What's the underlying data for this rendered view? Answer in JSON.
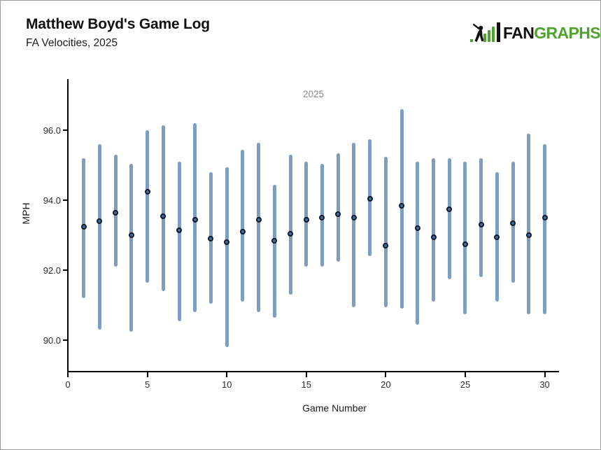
{
  "header": {
    "title": "Matthew Boyd's Game Log",
    "subtitle": "FA Velocities, 2025"
  },
  "logo": {
    "brand_black": "FAN",
    "brand_green": "GRAPHS",
    "green": "#4ea32c",
    "black": "#111111"
  },
  "chart_data": {
    "type": "rangebar",
    "title": "Matthew Boyd's Game Log — FA Velocities, 2025",
    "legend_label": "2025",
    "legend_position": "top-center",
    "xlabel": "Game Number",
    "ylabel": "MPH",
    "grid": false,
    "x_ticks": [
      0,
      5,
      10,
      15,
      20,
      25,
      30
    ],
    "y_ticks": [
      90,
      92,
      94,
      96
    ],
    "xlim": [
      0,
      30.9
    ],
    "ylim": [
      89.1,
      97.46
    ],
    "bar_color": "#7e9dc2",
    "point_fill": "#3f6fa0",
    "point_stroke": "#10192a",
    "series": [
      {
        "name": "2025",
        "games": [
          1,
          2,
          3,
          4,
          5,
          6,
          7,
          8,
          9,
          10,
          11,
          12,
          13,
          14,
          15,
          16,
          17,
          18,
          19,
          20,
          21,
          22,
          23,
          24,
          25,
          26,
          27,
          28,
          29,
          30
        ],
        "min": [
          91.2,
          90.3,
          92.1,
          90.25,
          91.65,
          91.4,
          90.55,
          90.8,
          91.05,
          89.8,
          91.1,
          90.8,
          90.65,
          91.3,
          92.1,
          92.1,
          92.25,
          90.95,
          92.4,
          90.95,
          90.9,
          90.45,
          91.1,
          91.75,
          90.75,
          91.8,
          91.1,
          91.65,
          90.75,
          90.75
        ],
        "max": [
          95.2,
          95.6,
          95.3,
          95.05,
          96.0,
          96.15,
          95.1,
          96.2,
          94.8,
          94.95,
          95.45,
          95.65,
          94.45,
          95.3,
          95.1,
          95.05,
          95.35,
          95.65,
          95.75,
          95.25,
          96.6,
          95.1,
          95.2,
          95.2,
          95.1,
          95.2,
          94.8,
          95.1,
          95.9,
          95.6
        ],
        "avg": [
          93.25,
          93.4,
          93.65,
          93.0,
          94.25,
          93.55,
          93.15,
          93.45,
          92.9,
          92.8,
          93.1,
          93.45,
          92.85,
          93.05,
          93.45,
          93.5,
          93.6,
          93.5,
          94.05,
          92.7,
          93.85,
          93.2,
          92.95,
          93.75,
          92.75,
          93.3,
          92.95,
          93.35,
          93.0,
          93.5
        ]
      }
    ]
  }
}
